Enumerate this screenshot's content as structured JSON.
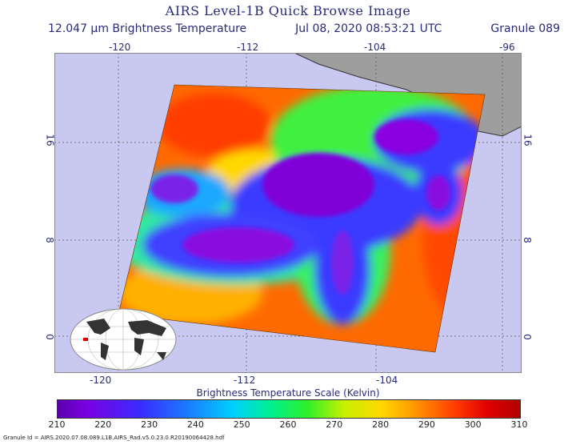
{
  "title": "AIRS Level-1B Quick Browse Image",
  "subtitle": {
    "channel": "12.047 μm Brightness Temperature",
    "timestamp": "Jul 08, 2020 08:53:21 UTC",
    "granule": "Granule 089"
  },
  "axes": {
    "lon_top": [
      "-120",
      "-112",
      "-104",
      "-96"
    ],
    "lon_bottom": [
      "-120",
      "-112",
      "-104"
    ],
    "lat_left": [
      "16",
      "8",
      "0"
    ],
    "lat_right": [
      "16",
      "8",
      "0"
    ]
  },
  "scale": {
    "title": "Brightness Temperature Scale (Kelvin)",
    "ticks": [
      "210",
      "220",
      "230",
      "240",
      "250",
      "260",
      "270",
      "280",
      "290",
      "300",
      "310"
    ],
    "min": 210,
    "max": 310
  },
  "colors": {
    "ocean_background": "#c8c8f0",
    "land": "#9e9e9e",
    "cold": "#6a00c8",
    "warm": "#ff5a00"
  },
  "footer": "Granule Id = AIRS.2020.07.08.089.L1B.AIRS_Rad.v5.0.23.0.R20190064428.hdf"
}
